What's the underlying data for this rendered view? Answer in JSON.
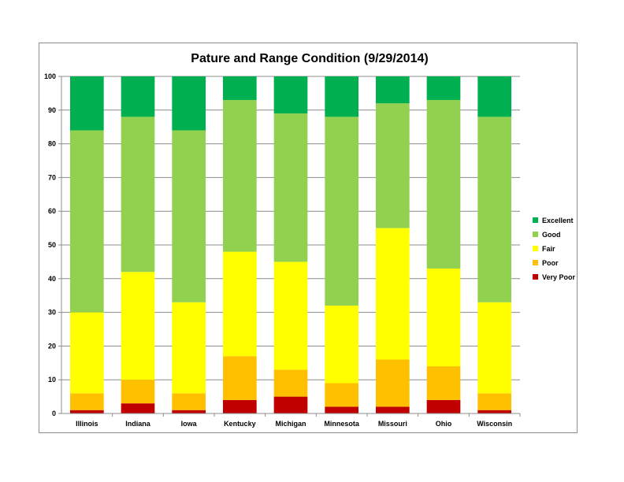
{
  "chart_data": {
    "type": "bar",
    "stacked": true,
    "title": "Pature and Range Condition (9/29/2014)",
    "xlabel": "",
    "ylabel": "",
    "ylim": [
      0,
      100
    ],
    "yticks": [
      0,
      10,
      20,
      30,
      40,
      50,
      60,
      70,
      80,
      90,
      100
    ],
    "grid": true,
    "legend_position": "right",
    "categories": [
      "Illinois",
      "Indiana",
      "Iowa",
      "Kentucky",
      "Michigan",
      "Minnesota",
      "Missouri",
      "Ohio",
      "Wisconsin"
    ],
    "series": [
      {
        "name": "Very Poor",
        "color": "#c00000",
        "values": [
          1,
          3,
          1,
          4,
          5,
          2,
          2,
          4,
          1
        ]
      },
      {
        "name": "Poor",
        "color": "#ffc000",
        "values": [
          5,
          7,
          5,
          13,
          8,
          7,
          14,
          10,
          5
        ]
      },
      {
        "name": "Fair",
        "color": "#ffff00",
        "values": [
          24,
          32,
          27,
          31,
          32,
          23,
          39,
          29,
          27
        ]
      },
      {
        "name": "Good",
        "color": "#92d050",
        "values": [
          54,
          46,
          51,
          45,
          44,
          56,
          37,
          50,
          55
        ]
      },
      {
        "name": "Excellent",
        "color": "#00b050",
        "values": [
          16,
          12,
          16,
          7,
          11,
          12,
          8,
          7,
          12
        ]
      }
    ],
    "legend_order": [
      "Excellent",
      "Good",
      "Fair",
      "Poor",
      "Very Poor"
    ]
  }
}
